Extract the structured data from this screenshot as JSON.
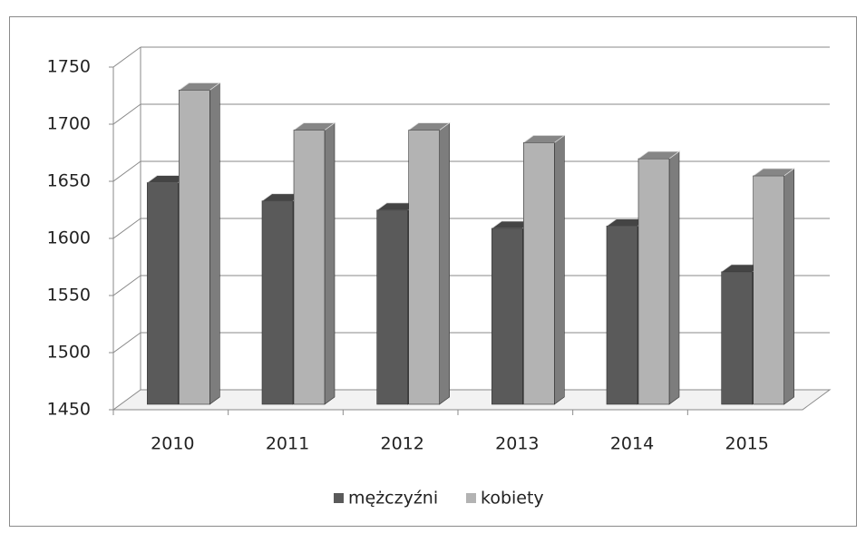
{
  "chart_data": {
    "type": "bar3d",
    "categories": [
      "2010",
      "2011",
      "2012",
      "2013",
      "2014",
      "2015"
    ],
    "series": [
      {
        "name": "mężczyźni",
        "color": "#5a5a5a",
        "values": [
          1644,
          1628,
          1620,
          1604,
          1606,
          1566
        ]
      },
      {
        "name": "kobiety",
        "color": "#b3b3b3",
        "values": [
          1725,
          1690,
          1690,
          1679,
          1665,
          1650
        ]
      }
    ],
    "ylim": [
      1450,
      1750
    ],
    "yticks": [
      1450,
      1500,
      1550,
      1600,
      1650,
      1700,
      1750
    ],
    "grid": true,
    "legend": "bottom"
  }
}
